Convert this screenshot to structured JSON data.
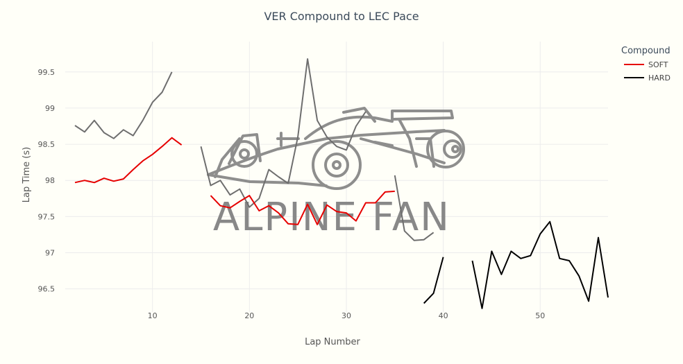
{
  "chart_data": {
    "type": "line",
    "title": "VER Compound to LEC Pace",
    "xlabel": "Lap Number",
    "ylabel": "Lap Time (s)",
    "xlim": [
      1,
      57
    ],
    "ylim": [
      96.18,
      99.92
    ],
    "xticks": [
      10,
      20,
      30,
      40,
      50
    ],
    "yticks": [
      96.5,
      97,
      97.5,
      98,
      98.5,
      99,
      99.5
    ],
    "ytick_labels": [
      "96.5",
      "97",
      "97.5",
      "98",
      "98.5",
      "99",
      "99.5"
    ],
    "grid": true,
    "legend": {
      "title": "Compound",
      "position": "top-right"
    },
    "series": [
      {
        "name": "SOFT",
        "color": "#e60000",
        "segments": [
          {
            "x": [
              2,
              3,
              4,
              5,
              6,
              7,
              8,
              9,
              10,
              11,
              12,
              13
            ],
            "y": [
              97.97,
              98.0,
              97.97,
              98.03,
              97.99,
              98.02,
              98.15,
              98.27,
              98.36,
              98.47,
              98.59,
              98.49
            ]
          },
          {
            "x": [
              16,
              17,
              18,
              19,
              20,
              21,
              22,
              23,
              24,
              25,
              26,
              27,
              28,
              29,
              30,
              31,
              32,
              33,
              34,
              35
            ],
            "y": [
              97.79,
              97.65,
              97.62,
              97.71,
              97.79,
              97.58,
              97.65,
              97.55,
              97.4,
              97.39,
              97.67,
              97.39,
              97.66,
              97.57,
              97.55,
              97.44,
              97.69,
              97.69,
              97.84,
              97.85
            ]
          }
        ]
      },
      {
        "name": "HARD",
        "color": "#000000",
        "segments": [
          {
            "x": [
              38,
              39,
              40
            ],
            "y": [
              96.3,
              96.44,
              96.94
            ]
          },
          {
            "x": [
              43,
              44,
              45,
              46,
              47,
              48,
              49,
              50,
              51,
              52,
              53,
              54,
              55,
              56,
              57
            ],
            "y": [
              96.89,
              96.23,
              97.02,
              96.7,
              97.02,
              96.92,
              96.96,
              97.26,
              97.43,
              96.92,
              96.89,
              96.68,
              96.33,
              97.21,
              96.38
            ]
          }
        ]
      }
    ],
    "reference": {
      "color": "#6e6e6e",
      "segments": [
        {
          "x": [
            2,
            3,
            4,
            5,
            6,
            7,
            8,
            9,
            10,
            11,
            12
          ],
          "y": [
            98.76,
            98.67,
            98.83,
            98.66,
            98.58,
            98.7,
            98.62,
            98.83,
            99.08,
            99.22,
            99.5
          ]
        },
        {
          "x": [
            15,
            16,
            17,
            18,
            19,
            20,
            21,
            22,
            23,
            24,
            25,
            26,
            27,
            28,
            29,
            30,
            31,
            32
          ],
          "y": [
            98.47,
            97.93,
            98.0,
            97.8,
            97.88,
            97.63,
            97.75,
            98.15,
            98.05,
            97.96,
            98.6,
            99.68,
            98.83,
            98.6,
            98.47,
            98.42,
            98.75,
            98.95
          ]
        },
        {
          "x": [
            35,
            36,
            37,
            38,
            39
          ],
          "y": [
            98.07,
            97.3,
            97.17,
            97.18,
            97.28
          ]
        }
      ]
    }
  },
  "watermark": {
    "text": "ALPINE FAN",
    "color": "#888888"
  }
}
